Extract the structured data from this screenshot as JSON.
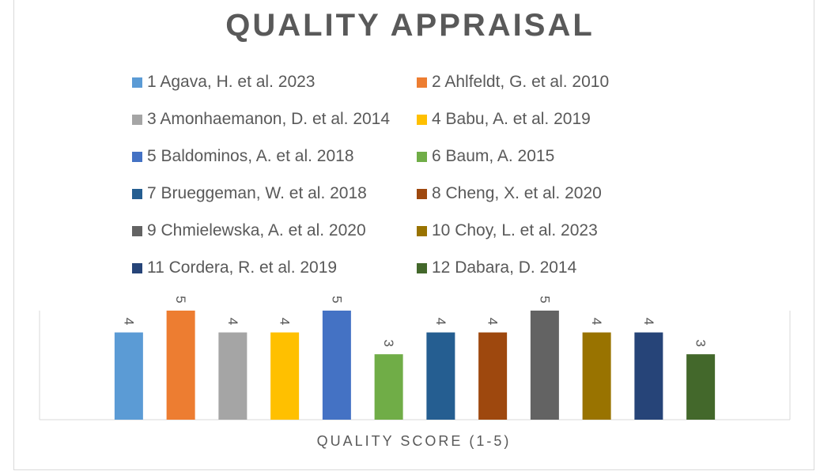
{
  "chart_data": {
    "type": "bar",
    "title": "QUALITY APPRAISAL",
    "xlabel": "QUALITY SCORE (1-5)",
    "ylabel": "",
    "ylim": [
      0,
      5
    ],
    "legend_position": "top",
    "grid": false,
    "data_labels": true,
    "series": [
      {
        "name": "1 Agava, H. et al. 2023",
        "values": [
          4
        ],
        "color": "#5B9BD5"
      },
      {
        "name": "2 Ahlfeldt, G. et al. 2010",
        "values": [
          5
        ],
        "color": "#ED7D31"
      },
      {
        "name": "3 Amonhaemanon, D. et al. 2014",
        "values": [
          4
        ],
        "color": "#A5A5A5"
      },
      {
        "name": "4 Babu, A. et al. 2019",
        "values": [
          4
        ],
        "color": "#FFC000"
      },
      {
        "name": "5 Baldominos, A. et al. 2018",
        "values": [
          5
        ],
        "color": "#4472C4"
      },
      {
        "name": "6 Baum, A. 2015",
        "values": [
          3
        ],
        "color": "#70AD47"
      },
      {
        "name": "7 Brueggeman, W. et al. 2018",
        "values": [
          4
        ],
        "color": "#255E91"
      },
      {
        "name": "8 Cheng, X. et al. 2020",
        "values": [
          4
        ],
        "color": "#9E480E"
      },
      {
        "name": "9 Chmielewska, A. et al. 2020",
        "values": [
          5
        ],
        "color": "#636363"
      },
      {
        "name": "10 Choy, L. et al. 2023",
        "values": [
          4
        ],
        "color": "#997300"
      },
      {
        "name": "11 Cordera, R. et al. 2019",
        "values": [
          4
        ],
        "color": "#264478"
      },
      {
        "name": "12 Dabara, D. 2014",
        "values": [
          3
        ],
        "color": "#43682B"
      }
    ]
  }
}
